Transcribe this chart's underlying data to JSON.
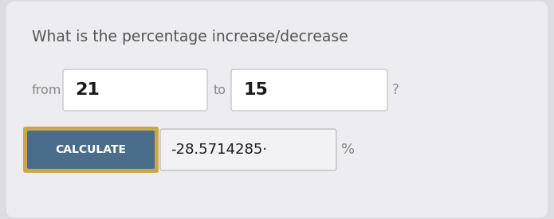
{
  "bg_color": "#dcdce2",
  "card_color": "#ededf1",
  "title_text": "What is the percentage increase/decrease",
  "title_color": "#555555",
  "title_fontsize": 13.5,
  "from_label": "from",
  "to_label": "to",
  "question_mark": "?",
  "value1": "21",
  "value2": "15",
  "input_bg": "#ffffff",
  "input_border": "#c8c8cc",
  "calc_label": "CALCULATE",
  "calc_bg": "#4a6d8c",
  "calc_text_color": "#ffffff",
  "calc_border": "#c8a84b",
  "result_text": "-28.5714285·",
  "result_bg": "#f2f2f4",
  "result_border": "#c0c0c4",
  "percent_label": "%",
  "label_color": "#888888",
  "value_fontsize": 16,
  "value_color": "#1a1a1a"
}
